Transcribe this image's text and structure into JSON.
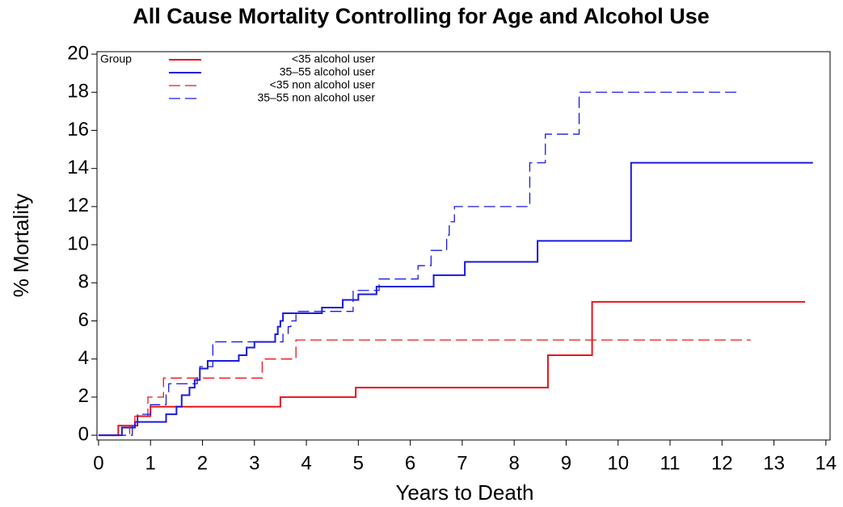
{
  "chart_data": {
    "type": "step",
    "title": "All Cause Mortality Controlling for Age and Alcohol Use",
    "x_label": "Years to Death",
    "y_label": "% Mortality",
    "legend_title": "Group",
    "legend": "upper left",
    "xlim": [
      -0.03,
      14.08
    ],
    "ylim": [
      -0.25,
      20.13
    ],
    "xticks": [
      0,
      1,
      2,
      3,
      4,
      5,
      6,
      7,
      8,
      9,
      10,
      11,
      12,
      13,
      14
    ],
    "yticks": [
      0,
      2,
      4,
      6,
      8,
      10,
      12,
      14,
      16,
      18,
      20
    ],
    "series": [
      {
        "name": "<35 alcohol user",
        "color": "#e8141c",
        "dash": false,
        "x": [
          0,
          0.38,
          0.75,
          1.0,
          3.5,
          4.95,
          8.65,
          9.5,
          13.6
        ],
        "values": [
          0,
          0.5,
          1.0,
          1.5,
          2.0,
          2.5,
          4.2,
          7.0,
          7.0
        ]
      },
      {
        "name": "35–55 alcohol user",
        "color": "#1a1ae0",
        "dash": false,
        "x": [
          0,
          0.45,
          0.7,
          1.3,
          1.5,
          1.6,
          1.75,
          1.85,
          1.95,
          2.1,
          2.7,
          2.85,
          3.0,
          3.4,
          3.45,
          3.5,
          3.55,
          4.3,
          4.7,
          5.0,
          5.35,
          6.45,
          7.05,
          8.45,
          10.25,
          13.75
        ],
        "values": [
          0,
          0.4,
          0.7,
          1.1,
          1.5,
          2.1,
          2.5,
          2.9,
          3.5,
          3.9,
          4.2,
          4.6,
          4.9,
          5.3,
          5.7,
          6.0,
          6.4,
          6.7,
          7.1,
          7.4,
          7.8,
          8.4,
          9.1,
          10.2,
          14.3,
          14.3
        ]
      },
      {
        "name": "<35 non alcohol user",
        "color": "#e8141c",
        "dash": true,
        "x": [
          0,
          0.6,
          0.7,
          0.95,
          1.25,
          3.15,
          3.8,
          12.55
        ],
        "values": [
          0,
          0.5,
          1.0,
          2.0,
          3.0,
          4.0,
          5.0,
          5.0
        ]
      },
      {
        "name": "35–55 non alcohol user",
        "color": "#1a1ae0",
        "dash": true,
        "x": [
          0,
          0.65,
          0.75,
          1.0,
          1.3,
          1.35,
          1.9,
          1.95,
          2.2,
          3.55,
          3.65,
          3.7,
          3.8,
          4.9,
          5.4,
          6.15,
          6.4,
          6.7,
          6.75,
          6.85,
          8.3,
          8.6,
          9.25,
          12.35
        ],
        "values": [
          0,
          0.5,
          1.1,
          1.6,
          2.2,
          2.7,
          3.2,
          3.6,
          4.9,
          5.3,
          5.7,
          6.0,
          6.5,
          7.6,
          8.2,
          8.9,
          9.7,
          10.5,
          11.2,
          12.0,
          14.3,
          15.8,
          18.0,
          18.0
        ]
      }
    ]
  }
}
